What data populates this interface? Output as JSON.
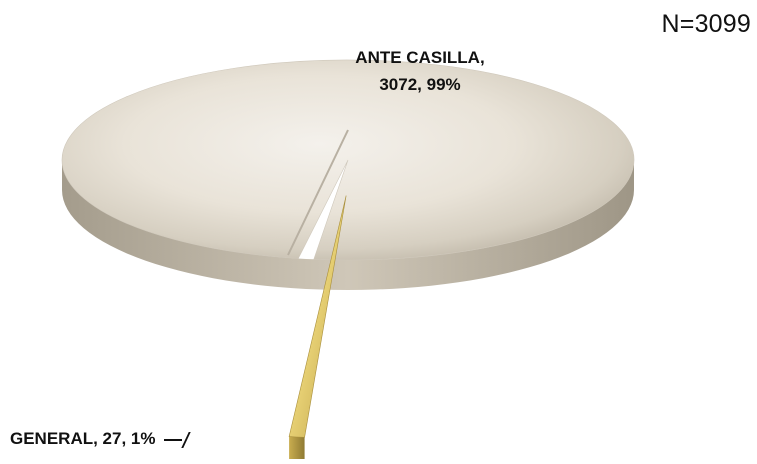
{
  "chart_data": {
    "type": "pie",
    "title": "",
    "note": "N=3099",
    "slices": [
      {
        "label": "ANTE CASILLA",
        "value": 3072,
        "percent": 99,
        "color": "#e6e0d4",
        "exploded": false
      },
      {
        "label": "GENERAL",
        "value": 27,
        "percent": 1,
        "color": "#e9d27a",
        "exploded": true
      }
    ],
    "data_labels": {
      "main_line1": "ANTE CASILLA,",
      "main_line2": "3072, 99%",
      "small": "GENERAL, 27, 1%"
    },
    "legend": "none"
  }
}
